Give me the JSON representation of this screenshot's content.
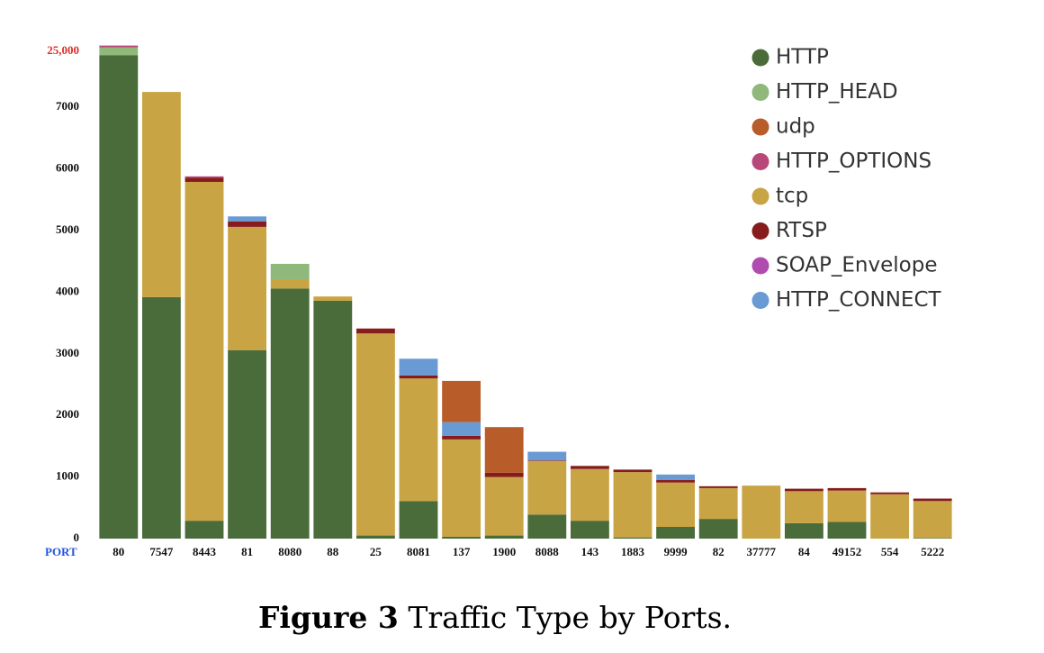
{
  "chart_data": {
    "type": "stacked_bar",
    "x_label": "PORT",
    "categories": [
      "80",
      "7547",
      "8443",
      "81",
      "8080",
      "88",
      "25",
      "8081",
      "137",
      "1900",
      "8088",
      "143",
      "1883",
      "9999",
      "82",
      "37777",
      "84",
      "49152",
      "554",
      "5222"
    ],
    "series": [
      {
        "name": "HTTP",
        "color": "#4a6b3a",
        "values": [
          24800,
          3920,
          290,
          3060,
          4060,
          3860,
          50,
          610,
          30,
          50,
          390,
          290,
          20,
          190,
          320,
          0,
          250,
          270,
          0,
          10
        ]
      },
      {
        "name": "HTTP_HEAD",
        "color": "#8fb87a",
        "values": [
          400,
          0,
          0,
          0,
          250,
          0,
          0,
          0,
          0,
          0,
          0,
          0,
          0,
          0,
          0,
          0,
          0,
          0,
          0,
          0
        ]
      },
      {
        "name": "udp",
        "color": "#b85c2a",
        "values": [
          0,
          0,
          0,
          0,
          0,
          0,
          0,
          0,
          670,
          740,
          0,
          0,
          0,
          0,
          0,
          0,
          0,
          0,
          0,
          0
        ]
      },
      {
        "name": "HTTP_OPTIONS",
        "color": "#b8487a",
        "values": [
          100,
          0,
          20,
          0,
          0,
          0,
          0,
          0,
          0,
          0,
          0,
          0,
          0,
          0,
          0,
          0,
          0,
          0,
          0,
          0
        ]
      },
      {
        "name": "tcp",
        "color": "#c9a444",
        "values": [
          0,
          3330,
          5500,
          2000,
          150,
          70,
          3280,
          1990,
          1580,
          950,
          870,
          840,
          1060,
          720,
          500,
          860,
          520,
          510,
          720,
          600
        ]
      },
      {
        "name": "RTSP",
        "color": "#861c1c",
        "values": [
          0,
          0,
          70,
          90,
          0,
          0,
          80,
          50,
          60,
          70,
          10,
          50,
          40,
          40,
          30,
          0,
          40,
          40,
          30,
          40
        ]
      },
      {
        "name": "SOAP_Envelope",
        "color": "#b04cb0",
        "values": [
          0,
          0,
          0,
          0,
          0,
          0,
          0,
          0,
          0,
          0,
          0,
          0,
          0,
          0,
          0,
          0,
          0,
          0,
          0,
          0
        ]
      },
      {
        "name": "HTTP_CONNECT",
        "color": "#6a9ad4",
        "values": [
          0,
          0,
          0,
          80,
          0,
          0,
          0,
          270,
          220,
          0,
          140,
          0,
          0,
          90,
          0,
          0,
          0,
          0,
          0,
          0
        ]
      }
    ],
    "stack_order": [
      0,
      4,
      5,
      7,
      2,
      1,
      3,
      6
    ],
    "ylim": [
      0,
      25800
    ],
    "ybreak": [
      7600,
      24000
    ],
    "yticks": [
      0,
      1000,
      2000,
      3000,
      4000,
      5000,
      6000,
      7000,
      {
        "value": 25000,
        "label": "25,000"
      }
    ],
    "caption": {
      "label": "Figure 3",
      "text": "Traffic Type by Ports."
    }
  }
}
